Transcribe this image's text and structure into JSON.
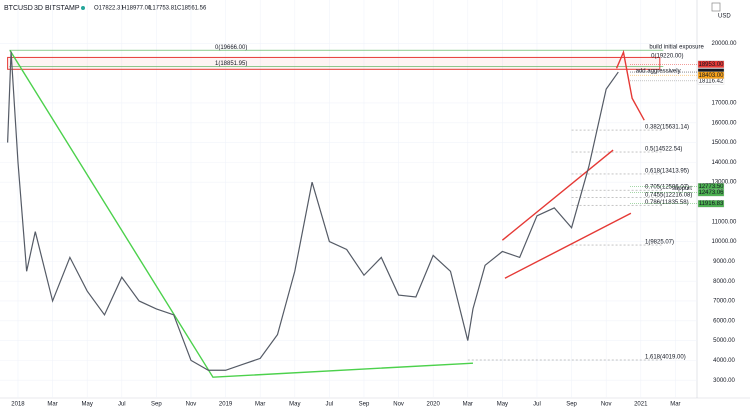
{
  "header": {
    "symbol": "BTCUSD",
    "interval": "3D",
    "exchange": "BITSTAMP",
    "ohlc": [
      "O17822.31",
      "H18977.00",
      "L17753.81",
      "C18561.56"
    ],
    "currency": "USD"
  },
  "chart_data": {
    "type": "line",
    "series": [
      {
        "name": "BTCUSD",
        "color": "#555b66",
        "x": [
          -0.6,
          -0.4,
          0,
          0.5,
          1,
          2,
          3,
          4,
          5,
          6,
          7,
          8,
          9,
          10,
          11,
          12,
          13,
          14,
          15,
          16,
          17,
          18,
          19,
          20,
          21,
          22,
          23,
          24,
          25,
          26,
          26.3,
          27,
          28,
          29,
          30,
          31,
          32,
          33,
          34,
          34.7
        ],
        "values": [
          15000,
          19600,
          14000,
          8500,
          10500,
          7000,
          9200,
          7500,
          6300,
          8200,
          7000,
          6600,
          6300,
          4000,
          3500,
          3500,
          3800,
          4100,
          5300,
          8500,
          13000,
          10000,
          9600,
          8300,
          9200,
          7300,
          7200,
          9300,
          8500,
          5000,
          6600,
          8800,
          9500,
          9200,
          11300,
          11700,
          10700,
          13800,
          17700,
          18560
        ]
      }
    ],
    "xlim": [
      -1.04,
      39.25
    ],
    "ylim": [
      2100,
      22200
    ],
    "xticks": [
      {
        "value": 0,
        "label": "2018"
      },
      {
        "value": 2,
        "label": "Mar"
      },
      {
        "value": 4,
        "label": "May"
      },
      {
        "value": 6,
        "label": "Jul"
      },
      {
        "value": 8,
        "label": "Sep"
      },
      {
        "value": 10,
        "label": "Nov"
      },
      {
        "value": 12,
        "label": "2019"
      },
      {
        "value": 14,
        "label": "Mar"
      },
      {
        "value": 16,
        "label": "May"
      },
      {
        "value": 18,
        "label": "Jul"
      },
      {
        "value": 20,
        "label": "Sep"
      },
      {
        "value": 22,
        "label": "Nov"
      },
      {
        "value": 24,
        "label": "2020"
      },
      {
        "value": 26,
        "label": "Mar"
      },
      {
        "value": 28,
        "label": "May"
      },
      {
        "value": 30,
        "label": "Jul"
      },
      {
        "value": 32,
        "label": "Sep"
      },
      {
        "value": 34,
        "label": "Nov"
      },
      {
        "value": 36,
        "label": "2021"
      },
      {
        "value": 38,
        "label": "Mar"
      }
    ],
    "yticks": [
      {
        "value": 3000,
        "label": "3000.00"
      },
      {
        "value": 4000,
        "label": "4000.00"
      },
      {
        "value": 5000,
        "label": "5000.00"
      },
      {
        "value": 6000,
        "label": "6000.00"
      },
      {
        "value": 7000,
        "label": "7000.00"
      },
      {
        "value": 8000,
        "label": "8000.00"
      },
      {
        "value": 9000,
        "label": "9000.00"
      },
      {
        "value": 10000,
        "label": "10000.00"
      },
      {
        "value": 11000,
        "label": "11000.00"
      },
      {
        "value": 13000,
        "label": "13000.00"
      },
      {
        "value": 14000,
        "label": "14000.00"
      },
      {
        "value": 15000,
        "label": "15000.00"
      },
      {
        "value": 16000,
        "label": "16000.00"
      },
      {
        "value": 17000,
        "label": "17000.00"
      },
      {
        "value": 20000,
        "label": "20000.00"
      }
    ],
    "grid": true,
    "fib_levels": [
      {
        "label": "0.382(15631.14)",
        "value": 15631.14,
        "x0": 32
      },
      {
        "label": "0.5(14522.54)",
        "value": 14522.54,
        "x0": 32
      },
      {
        "label": "0.618(13413.95)",
        "value": 13413.95,
        "x0": 32
      },
      {
        "label": "0.705(12596.07)",
        "value": 12596.07,
        "x0": 32
      },
      {
        "label": "0.7455(12216.08)",
        "value": 12216.08,
        "x0": 32
      },
      {
        "label": "0.786(11835.58)",
        "value": 11835.58,
        "x0": 32
      },
      {
        "label": "1(9825.07)",
        "value": 9825.07,
        "x0": 32
      },
      {
        "label": "1.618(4019.00)",
        "value": 4019,
        "x0": 26
      }
    ],
    "top_levels": [
      {
        "label": "0(19666.00)",
        "value": 19666,
        "color": "#4caf50"
      },
      {
        "label": "1(18851.95)",
        "value": 18851.95,
        "color": "#4caf50"
      }
    ],
    "boxes": [
      {
        "x0": -0.6,
        "x1": 37.1,
        "y0": 18700,
        "y1": 19300,
        "color": "#e53935"
      }
    ],
    "trendlines": [
      {
        "color": "#4cd14c",
        "x": [
          -0.46,
          11.27,
          26.3
        ],
        "y": [
          19650,
          3150,
          3860
        ]
      },
      {
        "color": "#e53935",
        "x": [
          28.0,
          34.4
        ],
        "y": [
          10070,
          14620
        ]
      },
      {
        "color": "#e53935",
        "x": [
          28.15,
          35.43
        ],
        "y": [
          8150,
          11430
        ]
      },
      {
        "color": "#e53935",
        "x": [
          34.6,
          35.0,
          35.5,
          36.2
        ],
        "y": [
          18750,
          19560,
          17240,
          16130
        ]
      }
    ],
    "annotations": [
      {
        "text": "build initial exposure",
        "x": 36.5,
        "y": 19820
      },
      {
        "text": "0(19220.00)",
        "x": 36.6,
        "y": 19380
      },
      {
        "text": "add aggressively",
        "x": 35.7,
        "y": 18620
      },
      {
        "text": "support",
        "x": 37.8,
        "y": 12680
      }
    ],
    "price_tags": [
      {
        "value": 18953,
        "label": "18953.00",
        "color": "#e53935"
      },
      {
        "value": 18561.56,
        "color": "#131722"
      },
      {
        "value": 18116.42,
        "color": "#ffffff"
      },
      {
        "value": 18403,
        "label": "18403.00",
        "color": "#f7a21b"
      },
      {
        "value": 12773.5,
        "label": "12773.50",
        "color": "#4caf50"
      },
      {
        "value": 12473.06,
        "color": "#4caf50"
      },
      {
        "value": 11916.83,
        "color": "#4caf50"
      }
    ]
  }
}
